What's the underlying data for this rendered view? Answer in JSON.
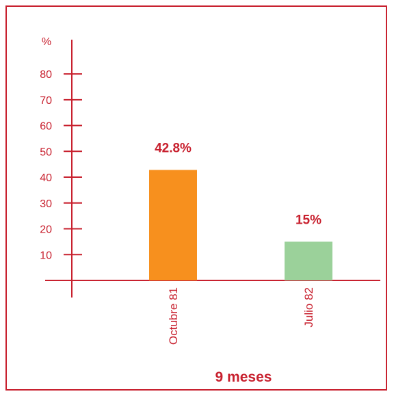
{
  "chart_data": {
    "type": "bar",
    "categories": [
      "Octubre 81",
      "Julio 82"
    ],
    "values": [
      42.8,
      15
    ],
    "value_labels": [
      "42.8%",
      "15%"
    ],
    "bar_colors": [
      "#f7901e",
      "#9bd19a"
    ],
    "yunit": "%",
    "yticks": [
      10,
      20,
      30,
      40,
      50,
      60,
      70,
      80
    ],
    "ylim": [
      0,
      80
    ],
    "xlabel": "9 meses",
    "grid": false,
    "legend": "none"
  },
  "colors": {
    "axis": "#c8202e",
    "text": "#c8202e",
    "frame": "#c8202e"
  }
}
